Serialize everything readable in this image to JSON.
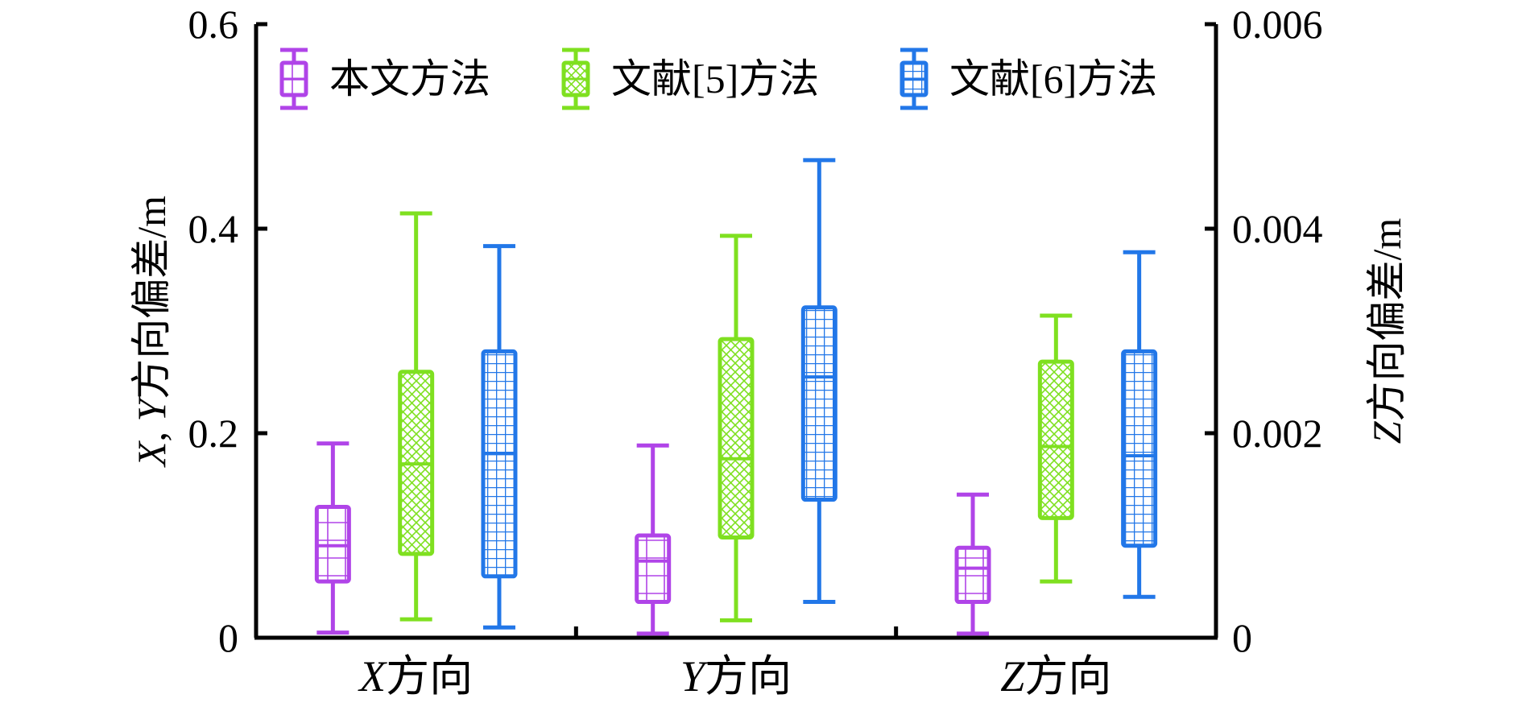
{
  "chart_data": {
    "type": "box",
    "categories": [
      "X方向",
      "Y方向",
      "Z方向"
    ],
    "category_labels": [
      {
        "italic": "X",
        "rest": "方向"
      },
      {
        "italic": "Y",
        "rest": "方向"
      },
      {
        "italic": "Z",
        "rest": "方向"
      }
    ],
    "left_axis": {
      "label": "X, Y方向偏差/m",
      "label_parts": {
        "italic1": "X",
        "sep": ", ",
        "italic2": "Y",
        "rest": "方向偏差/m"
      },
      "ylim": [
        0,
        0.6
      ],
      "ticks": [
        0,
        0.2,
        0.4,
        0.6
      ],
      "tick_labels": [
        "0",
        "0.2",
        "0.4",
        "0.6"
      ],
      "applies_to": [
        "X方向",
        "Y方向"
      ]
    },
    "right_axis": {
      "label": "Z方向偏差/m",
      "label_parts": {
        "italic": "Z",
        "rest": "方向偏差/m"
      },
      "ylim": [
        0,
        0.006
      ],
      "ticks": [
        0,
        0.002,
        0.004,
        0.006
      ],
      "tick_labels": [
        "0",
        "0.002",
        "0.004",
        "0.006"
      ],
      "applies_to": [
        "Z方向"
      ]
    },
    "legend": {
      "position": "top-left",
      "entries": [
        "本文方法",
        "文献[5]方法",
        "文献[6]方法"
      ]
    },
    "series": [
      {
        "name": "本文方法",
        "color": "#B044E8",
        "pattern": "cross",
        "boxes": [
          {
            "min": 0.005,
            "q1": 0.055,
            "median": 0.09,
            "q3": 0.128,
            "max": 0.19
          },
          {
            "min": 0.004,
            "q1": 0.035,
            "median": 0.075,
            "q3": 0.1,
            "max": 0.188
          },
          {
            "min": 4e-05,
            "q1": 0.00035,
            "median": 0.00068,
            "q3": 0.00088,
            "max": 0.0014
          }
        ]
      },
      {
        "name": "文献[5]方法",
        "color": "#7FE020",
        "pattern": "crosshatch",
        "boxes": [
          {
            "min": 0.018,
            "q1": 0.082,
            "median": 0.17,
            "q3": 0.26,
            "max": 0.415
          },
          {
            "min": 0.017,
            "q1": 0.098,
            "median": 0.175,
            "q3": 0.292,
            "max": 0.393
          },
          {
            "min": 0.00055,
            "q1": 0.00117,
            "median": 0.00187,
            "q3": 0.0027,
            "max": 0.00315
          }
        ]
      },
      {
        "name": "文献[6]方法",
        "color": "#2277E8",
        "pattern": "grid",
        "boxes": [
          {
            "min": 0.01,
            "q1": 0.06,
            "median": 0.18,
            "q3": 0.28,
            "max": 0.383
          },
          {
            "min": 0.035,
            "q1": 0.135,
            "median": 0.255,
            "q3": 0.323,
            "max": 0.467
          },
          {
            "min": 0.0004,
            "q1": 0.0009,
            "median": 0.00178,
            "q3": 0.0028,
            "max": 0.00377
          }
        ]
      }
    ]
  }
}
